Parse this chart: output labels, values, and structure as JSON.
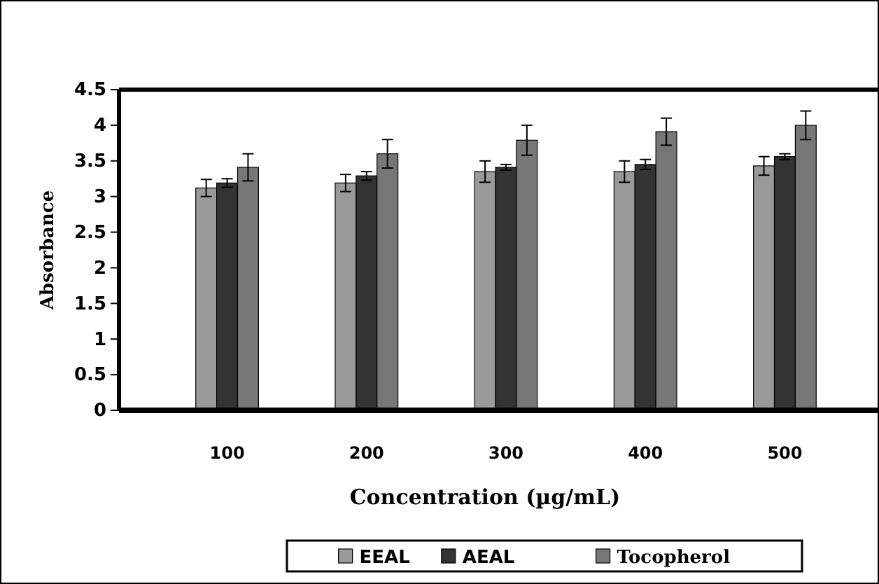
{
  "chart_data": {
    "type": "bar",
    "xlabel": "Concentration (µg/mL)",
    "ylabel": "Absorbance",
    "categories": [
      "100",
      "200",
      "300",
      "400",
      "500"
    ],
    "series": [
      {
        "name": "EEAL",
        "color": "#9a9a9a",
        "values": [
          3.12,
          3.19,
          3.35,
          3.35,
          3.43
        ],
        "errors": [
          0.12,
          0.12,
          0.15,
          0.15,
          0.13
        ]
      },
      {
        "name": "AEAL",
        "color": "#333333",
        "values": [
          3.19,
          3.29,
          3.41,
          3.45,
          3.56
        ],
        "errors": [
          0.06,
          0.06,
          0.04,
          0.07,
          0.04
        ]
      },
      {
        "name": "Tocopherol",
        "color": "#777777",
        "values": [
          3.41,
          3.6,
          3.79,
          3.91,
          4.0
        ],
        "errors": [
          0.19,
          0.2,
          0.21,
          0.19,
          0.2
        ]
      }
    ],
    "ylim": [
      0,
      4.5
    ],
    "yticks": [
      0,
      0.5,
      1,
      1.5,
      2,
      2.5,
      3,
      3.5,
      4,
      4.5
    ],
    "grid": false,
    "legend": "bottom"
  }
}
